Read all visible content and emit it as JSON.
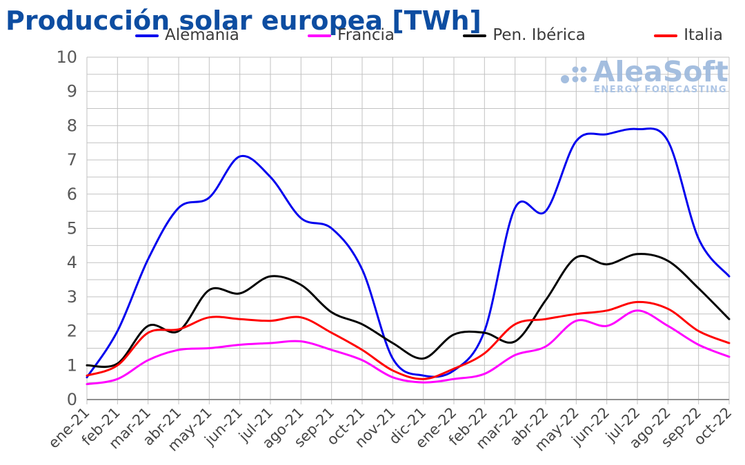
{
  "title": "Producción solar europea [TWh]",
  "watermark": {
    "name": "AleaSoft",
    "tagline": "ENERGY FORECASTING"
  },
  "legend": {
    "position": "top"
  },
  "axes": {
    "y_tick_labels": [
      "0",
      "1",
      "2",
      "3",
      "4",
      "5",
      "6",
      "7",
      "8",
      "9",
      "10"
    ],
    "x_tick_labels": [
      "ene-21",
      "feb-21",
      "mar-21",
      "abr-21",
      "may-21",
      "jun-21",
      "jul-21",
      "ago-21",
      "sep-21",
      "oct-21",
      "nov-21",
      "dic-21",
      "ene-22",
      "feb-22",
      "mar-22",
      "abr-22",
      "may-22",
      "jun-22",
      "jul-22",
      "ago-22",
      "sep-22",
      "oct-22"
    ]
  },
  "chart_data": {
    "type": "line",
    "title": "Producción solar europea [TWh]",
    "xlabel": "",
    "ylabel": "",
    "ylim": [
      0,
      10
    ],
    "y_major_step": 1,
    "y_minor_step": 0.5,
    "grid": true,
    "legend_position": "top",
    "x": [
      "ene-21",
      "feb-21",
      "mar-21",
      "abr-21",
      "may-21",
      "jun-21",
      "jul-21",
      "ago-21",
      "sep-21",
      "oct-21",
      "nov-21",
      "dic-21",
      "ene-22",
      "feb-22",
      "mar-22",
      "abr-22",
      "may-22",
      "jun-22",
      "jul-22",
      "ago-22",
      "sep-22",
      "oct-22"
    ],
    "series": [
      {
        "name": "Alemania",
        "color": "#0000ee",
        "values": [
          0.65,
          2.0,
          4.1,
          5.6,
          5.9,
          7.1,
          6.5,
          5.3,
          5.0,
          3.8,
          1.2,
          0.7,
          0.85,
          2.0,
          5.6,
          5.5,
          7.55,
          7.75,
          7.9,
          7.55,
          4.7,
          3.6
        ]
      },
      {
        "name": "Francia",
        "color": "#ff00ff",
        "values": [
          0.45,
          0.6,
          1.15,
          1.45,
          1.5,
          1.6,
          1.65,
          1.7,
          1.45,
          1.15,
          0.65,
          0.5,
          0.6,
          0.75,
          1.3,
          1.55,
          2.3,
          2.15,
          2.6,
          2.15,
          1.6,
          1.25
        ]
      },
      {
        "name": "Pen. Ibérica",
        "color": "#000000",
        "values": [
          1.0,
          1.05,
          2.15,
          2.0,
          3.2,
          3.1,
          3.6,
          3.35,
          2.55,
          2.2,
          1.65,
          1.2,
          1.9,
          1.95,
          1.7,
          2.9,
          4.15,
          3.95,
          4.25,
          4.05,
          3.25,
          2.35
        ]
      },
      {
        "name": "Italia",
        "color": "#ff0000",
        "values": [
          0.7,
          1.0,
          1.95,
          2.05,
          2.4,
          2.35,
          2.3,
          2.4,
          1.95,
          1.45,
          0.85,
          0.6,
          0.9,
          1.35,
          2.2,
          2.35,
          2.5,
          2.6,
          2.85,
          2.65,
          2.0,
          1.65
        ]
      }
    ]
  },
  "style": {
    "grid_color": "#c2c2c2",
    "axis_line_color": "#8f8f8f",
    "y_label_color": "#595959",
    "x_label_color": "#454545",
    "title_color": "#0d4da1",
    "watermark_color": "#9db9dd"
  }
}
